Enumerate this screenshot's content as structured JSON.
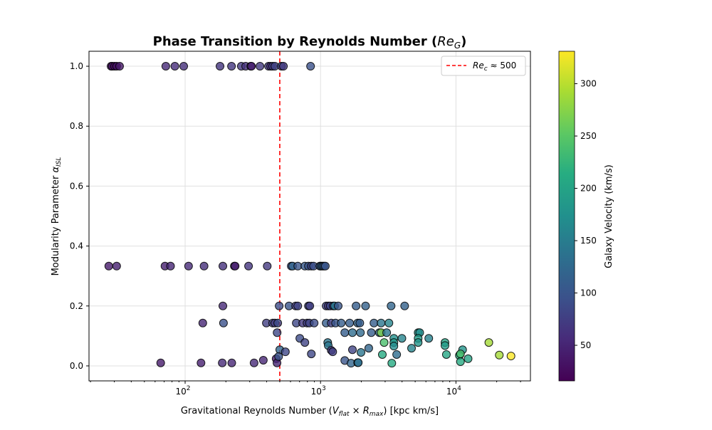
{
  "chart_data": {
    "type": "scatter",
    "title": {
      "prefix": "Phase Transition by Reynolds Number (",
      "math_base": "Re",
      "math_sub": "G",
      "suffix": ")"
    },
    "xlabel": {
      "prefix": "Gravitational Reynolds Number (",
      "v": "V",
      "v_sub": "flat",
      "times": " × ",
      "r": "R",
      "r_sub": "max",
      "suffix": ") [kpc km/s]"
    },
    "ylabel": {
      "prefix": "Modularity Parameter ",
      "alpha": "α",
      "alpha_sub": "ISL"
    },
    "x_scale": "log",
    "xlim": [
      19.5,
      35500
    ],
    "ylim": [
      -0.05,
      1.05
    ],
    "x_ticks": [
      100,
      1000,
      10000
    ],
    "x_tick_labels": [
      {
        "base": "10",
        "exp": "2"
      },
      {
        "base": "10",
        "exp": "3"
      },
      {
        "base": "10",
        "exp": "4"
      }
    ],
    "y_ticks": [
      0.0,
      0.2,
      0.4,
      0.6,
      0.8,
      1.0
    ],
    "y_tick_labels": [
      "0.0",
      "0.2",
      "0.4",
      "0.6",
      "0.8",
      "1.0"
    ],
    "grid": true,
    "reference_line": {
      "x": 500,
      "color": "#ff0000",
      "style": "dashed",
      "label_base": "Re",
      "label_sub": "c",
      "label_rest": " ≈ 500"
    },
    "legend_position": "top-right",
    "colorbar": {
      "label": "Galaxy Velocity (km/s)",
      "colormap": "viridis",
      "range": [
        16,
        331
      ],
      "ticks": [
        50,
        100,
        150,
        200,
        250,
        300
      ],
      "tick_labels": [
        "50",
        "100",
        "150",
        "200",
        "250",
        "300"
      ]
    },
    "point_columns": [
      "x",
      "y",
      "velocity"
    ],
    "points": [
      [
        28.4,
        1,
        35
      ],
      [
        29,
        1,
        30
      ],
      [
        30.1,
        1,
        28
      ],
      [
        31.2,
        1,
        32
      ],
      [
        32.8,
        1,
        38
      ],
      [
        72,
        1,
        55
      ],
      [
        84,
        1,
        58
      ],
      [
        97.6,
        1,
        60
      ],
      [
        181,
        1,
        65
      ],
      [
        220,
        1,
        68
      ],
      [
        260,
        1,
        70
      ],
      [
        280,
        1,
        62
      ],
      [
        305,
        1,
        72
      ],
      [
        309,
        1,
        40
      ],
      [
        357,
        1,
        70
      ],
      [
        413,
        1,
        72
      ],
      [
        428,
        1,
        60
      ],
      [
        443,
        1,
        75
      ],
      [
        460,
        1,
        78
      ],
      [
        514,
        1,
        80
      ],
      [
        532,
        1,
        70
      ],
      [
        844,
        1,
        95
      ],
      [
        27.3,
        0.333,
        40
      ],
      [
        31.2,
        0.333,
        45
      ],
      [
        71,
        0.333,
        45
      ],
      [
        78,
        0.333,
        50
      ],
      [
        106,
        0.333,
        55
      ],
      [
        138,
        0.333,
        60
      ],
      [
        190,
        0.333,
        62
      ],
      [
        231,
        0.333,
        65
      ],
      [
        234,
        0.333,
        40
      ],
      [
        294,
        0.333,
        65
      ],
      [
        404,
        0.333,
        70
      ],
      [
        608,
        0.333,
        95
      ],
      [
        622,
        0.333,
        120
      ],
      [
        679,
        0.333,
        100
      ],
      [
        766,
        0.333,
        105
      ],
      [
        814,
        0.333,
        100
      ],
      [
        855,
        0.333,
        80
      ],
      [
        888,
        0.333,
        95
      ],
      [
        988,
        0.333,
        100
      ],
      [
        1010,
        0.333,
        120
      ],
      [
        1035,
        0.333,
        110
      ],
      [
        1060,
        0.333,
        105
      ],
      [
        1085,
        0.333,
        100
      ],
      [
        190,
        0.2,
        55
      ],
      [
        495,
        0.2,
        90
      ],
      [
        585,
        0.2,
        100
      ],
      [
        655,
        0.2,
        75
      ],
      [
        679,
        0.2,
        80
      ],
      [
        814,
        0.2,
        85
      ],
      [
        833,
        0.2,
        75
      ],
      [
        1100,
        0.2,
        80
      ],
      [
        1140,
        0.2,
        70
      ],
      [
        1180,
        0.2,
        85
      ],
      [
        1240,
        0.2,
        80
      ],
      [
        1270,
        0.2,
        150
      ],
      [
        1350,
        0.2,
        100
      ],
      [
        1830,
        0.2,
        110
      ],
      [
        2150,
        0.2,
        115
      ],
      [
        3320,
        0.2,
        120
      ],
      [
        4180,
        0.2,
        115
      ],
      [
        135,
        0.143,
        50
      ],
      [
        192,
        0.143,
        95
      ],
      [
        398,
        0.143,
        75
      ],
      [
        443,
        0.143,
        80
      ],
      [
        460,
        0.143,
        70
      ],
      [
        483,
        0.143,
        90
      ],
      [
        662,
        0.143,
        85
      ],
      [
        738,
        0.143,
        70
      ],
      [
        795,
        0.143,
        75
      ],
      [
        827,
        0.143,
        80
      ],
      [
        897,
        0.143,
        90
      ],
      [
        1100,
        0.143,
        110
      ],
      [
        1200,
        0.143,
        75
      ],
      [
        1290,
        0.143,
        100
      ],
      [
        1420,
        0.143,
        110
      ],
      [
        1640,
        0.143,
        110
      ],
      [
        1880,
        0.143,
        120
      ],
      [
        1950,
        0.143,
        110
      ],
      [
        2480,
        0.143,
        110
      ],
      [
        2800,
        0.143,
        140
      ],
      [
        3200,
        0.143,
        160
      ],
      [
        478,
        0.111,
        85
      ],
      [
        1510,
        0.111,
        110
      ],
      [
        1720,
        0.111,
        130
      ],
      [
        1970,
        0.111,
        125
      ],
      [
        2370,
        0.111,
        110
      ],
      [
        2720,
        0.111,
        130
      ],
      [
        2800,
        0.111,
        270
      ],
      [
        3080,
        0.111,
        140
      ],
      [
        5260,
        0.111,
        180
      ],
      [
        5400,
        0.111,
        170
      ],
      [
        703,
        0.092,
        90
      ],
      [
        766,
        0.078,
        80
      ],
      [
        2950,
        0.078,
        240
      ],
      [
        3480,
        0.092,
        175
      ],
      [
        3480,
        0.078,
        185
      ],
      [
        3990,
        0.092,
        160
      ],
      [
        5260,
        0.092,
        190
      ],
      [
        6300,
        0.092,
        155
      ],
      [
        8300,
        0.078,
        200
      ],
      [
        17500,
        0.078,
        290
      ],
      [
        1130,
        0.078,
        140
      ],
      [
        1140,
        0.068,
        140
      ],
      [
        3480,
        0.066,
        170
      ],
      [
        8300,
        0.068,
        190
      ],
      [
        5260,
        0.078,
        180
      ],
      [
        500,
        0.054,
        120
      ],
      [
        550,
        0.047,
        85
      ],
      [
        1200,
        0.052,
        70
      ],
      [
        1230,
        0.047,
        75
      ],
      [
        1720,
        0.054,
        80
      ],
      [
        2270,
        0.059,
        120
      ],
      [
        4700,
        0.059,
        160
      ],
      [
        11200,
        0.054,
        180
      ],
      [
        855,
        0.04,
        85
      ],
      [
        1990,
        0.045,
        140
      ],
      [
        2860,
        0.038,
        210
      ],
      [
        3650,
        0.038,
        130
      ],
      [
        8500,
        0.038,
        205
      ],
      [
        10600,
        0.035,
        215
      ],
      [
        10800,
        0.04,
        240
      ],
      [
        20900,
        0.036,
        290
      ],
      [
        25500,
        0.033,
        330
      ],
      [
        1510,
        0.018,
        100
      ],
      [
        1680,
        0.009,
        120
      ],
      [
        1880,
        0.011,
        150
      ],
      [
        1900,
        0.011,
        130
      ],
      [
        3360,
        0.009,
        210
      ],
      [
        10800,
        0.014,
        210
      ],
      [
        12300,
        0.024,
        200
      ],
      [
        66,
        0.01,
        40
      ],
      [
        131,
        0.01,
        45
      ],
      [
        188,
        0.01,
        55
      ],
      [
        221,
        0.01,
        50
      ],
      [
        323,
        0.01,
        55
      ],
      [
        378,
        0.019,
        50
      ],
      [
        470,
        0.024,
        40
      ],
      [
        477,
        0.01,
        50
      ],
      [
        490,
        0.031,
        100
      ]
    ]
  }
}
